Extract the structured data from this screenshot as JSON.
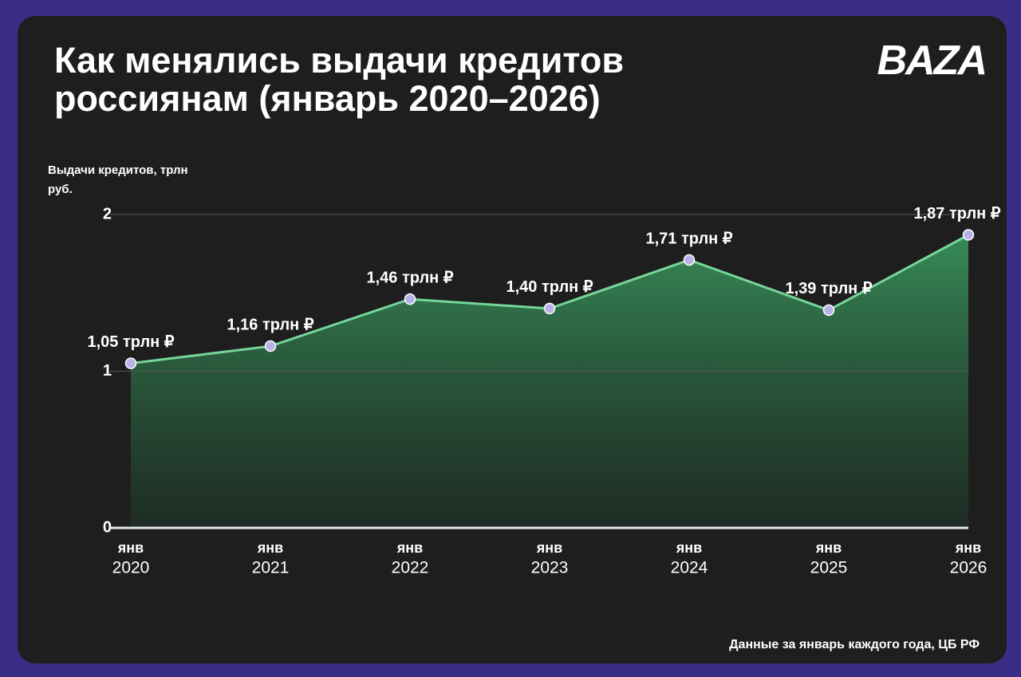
{
  "chart_data": {
    "type": "line",
    "title": "Как менялись выдачи кредитов россиянам (январь 2020–2026)",
    "brand": "BAZA",
    "y_axis_label": "Выдачи кредитов, трлн руб.",
    "source": "Данные за январь каждого года, ЦБ РФ",
    "categories": [
      [
        "янв",
        "2020"
      ],
      [
        "янв",
        "2021"
      ],
      [
        "янв",
        "2022"
      ],
      [
        "янв",
        "2023"
      ],
      [
        "янв",
        "2024"
      ],
      [
        "янв",
        "2025"
      ],
      [
        "янв",
        "2026"
      ]
    ],
    "values": [
      1.05,
      1.16,
      1.46,
      1.4,
      1.71,
      1.39,
      1.87
    ],
    "value_labels": [
      "1,05 трлн ₽",
      "1,16 трлн ₽",
      "1,46 трлн ₽",
      "1,40 трлн ₽",
      "1,71 трлн ₽",
      "1,39 трлн ₽",
      "1,87 трлн ₽"
    ],
    "color": "#7ee6a4",
    "point_color": "#b9b2e6",
    "ylim": [
      0,
      2
    ],
    "yticks": [
      0,
      1,
      2
    ],
    "grid": true
  }
}
